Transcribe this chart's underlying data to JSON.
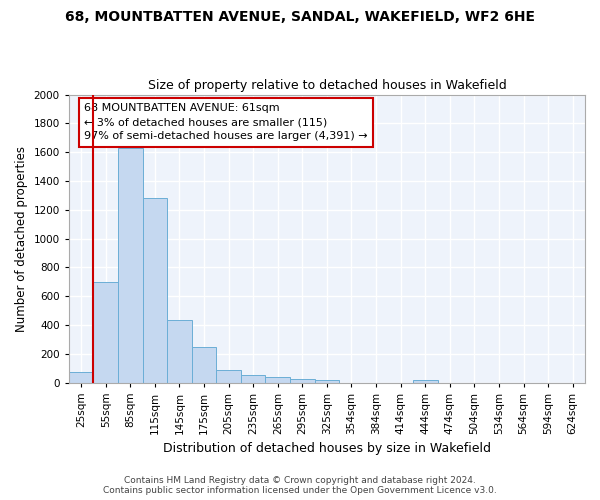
{
  "title1": "68, MOUNTBATTEN AVENUE, SANDAL, WAKEFIELD, WF2 6HE",
  "title2": "Size of property relative to detached houses in Wakefield",
  "xlabel": "Distribution of detached houses by size in Wakefield",
  "ylabel": "Number of detached properties",
  "footer1": "Contains HM Land Registry data © Crown copyright and database right 2024.",
  "footer2": "Contains public sector information licensed under the Open Government Licence v3.0.",
  "annotation_line1": "68 MOUNTBATTEN AVENUE: 61sqm",
  "annotation_line2": "← 3% of detached houses are smaller (115)",
  "annotation_line3": "97% of semi-detached houses are larger (4,391) →",
  "bar_categories": [
    "25sqm",
    "55sqm",
    "85sqm",
    "115sqm",
    "145sqm",
    "175sqm",
    "205sqm",
    "235sqm",
    "265sqm",
    "295sqm",
    "325sqm",
    "354sqm",
    "384sqm",
    "414sqm",
    "444sqm",
    "474sqm",
    "504sqm",
    "534sqm",
    "564sqm",
    "594sqm",
    "624sqm"
  ],
  "bar_values": [
    70,
    700,
    1630,
    1280,
    435,
    250,
    90,
    52,
    35,
    25,
    20,
    0,
    0,
    0,
    18,
    0,
    0,
    0,
    0,
    0,
    0
  ],
  "bar_color": "#c5d8f0",
  "bar_edge_color": "#6baed6",
  "vline_color": "#cc0000",
  "vline_position": 1.5,
  "annotation_box_edge_color": "#cc0000",
  "background_color": "#eef3fb",
  "grid_color": "#ffffff",
  "ylim": [
    0,
    2000
  ],
  "yticks": [
    0,
    200,
    400,
    600,
    800,
    1000,
    1200,
    1400,
    1600,
    1800,
    2000
  ],
  "title1_fontsize": 10,
  "title2_fontsize": 9,
  "ylabel_fontsize": 8.5,
  "xlabel_fontsize": 9,
  "tick_fontsize": 7.5,
  "footer_fontsize": 6.5
}
